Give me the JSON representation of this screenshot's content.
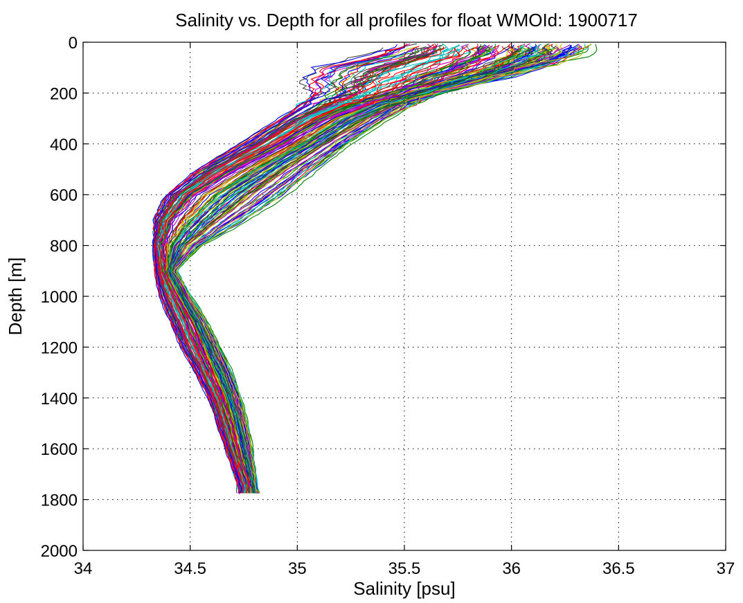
{
  "chart_data": {
    "type": "line",
    "title": "Salinity vs. Depth for all profiles for float WMOId: 1900717",
    "xlabel": "Salinity [psu]",
    "ylabel": "Depth [m]",
    "xlim": [
      34,
      37
    ],
    "ylim": [
      0,
      2000
    ],
    "y_reversed": true,
    "grid": true,
    "legend": "none",
    "x_ticks": [
      "34",
      "34.5",
      "35",
      "35.5",
      "36",
      "36.5",
      "37"
    ],
    "y_ticks": [
      "0",
      "200",
      "400",
      "600",
      "800",
      "1000",
      "1200",
      "1400",
      "1600",
      "1800",
      "2000"
    ],
    "palette": [
      "#0000ff",
      "#008000",
      "#ff0000",
      "#00bfbf",
      "#bf00bf",
      "#bfbf00",
      "#404040"
    ],
    "envelope": {
      "depth": [
        0,
        50,
        100,
        150,
        200,
        250,
        300,
        400,
        500,
        600,
        700,
        800,
        900,
        1000,
        1100,
        1200,
        1300,
        1400,
        1500,
        1600,
        1700,
        1750
      ],
      "left_salinity": [
        35.45,
        35.3,
        35.05,
        35.0,
        35.05,
        35.0,
        34.9,
        34.72,
        34.52,
        34.38,
        34.32,
        34.32,
        34.33,
        34.35,
        34.4,
        34.45,
        34.52,
        34.58,
        34.62,
        34.66,
        34.7,
        34.72
      ],
      "center_salinity": [
        35.95,
        35.95,
        35.85,
        35.7,
        35.5,
        35.3,
        35.15,
        34.95,
        34.72,
        34.52,
        34.42,
        34.37,
        34.38,
        34.44,
        34.5,
        34.55,
        34.6,
        34.65,
        34.69,
        34.72,
        34.76,
        34.78
      ],
      "right_salinity": [
        36.5,
        36.42,
        36.2,
        35.95,
        35.7,
        35.6,
        35.5,
        35.32,
        35.18,
        35.05,
        34.85,
        34.6,
        34.45,
        34.52,
        34.6,
        34.66,
        34.72,
        34.76,
        34.79,
        34.81,
        34.82,
        34.82
      ]
    }
  }
}
